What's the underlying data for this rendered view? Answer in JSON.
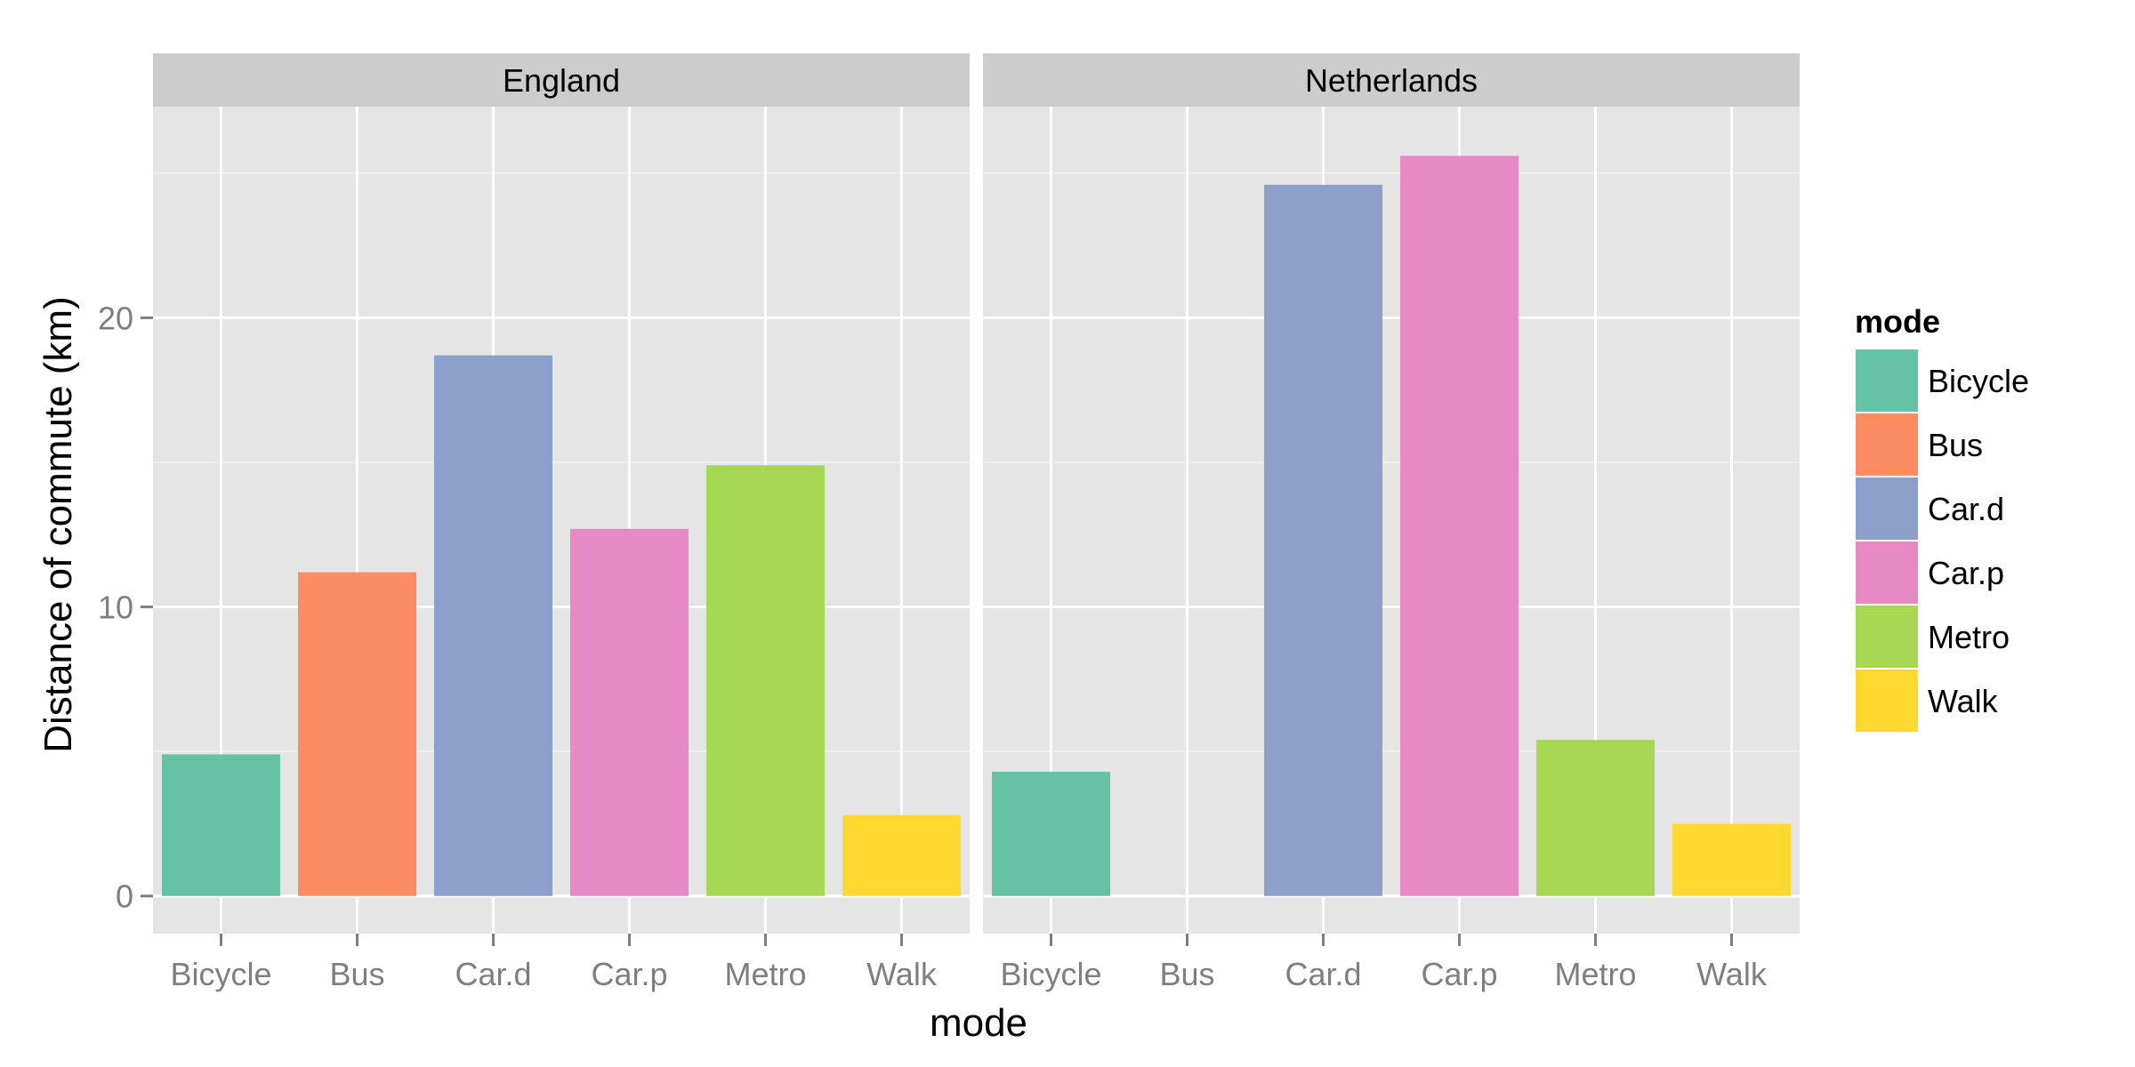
{
  "chart_data": {
    "type": "bar",
    "categories": [
      "Bicycle",
      "Bus",
      "Car.d",
      "Car.p",
      "Metro",
      "Walk"
    ],
    "panels": [
      {
        "name": "England",
        "values": [
          4.9,
          11.2,
          18.7,
          12.7,
          14.9,
          2.8
        ]
      },
      {
        "name": "Netherlands",
        "values": [
          4.3,
          0,
          24.6,
          25.6,
          5.4,
          2.5
        ]
      }
    ],
    "ylim": [
      -1.3,
      27.3
    ],
    "yticks": [
      0,
      10,
      20
    ],
    "xlabel": "mode",
    "ylabel": "Distance of commute (km)",
    "legend": {
      "title": "mode",
      "position": "right",
      "items": [
        "Bicycle",
        "Bus",
        "Car.d",
        "Car.p",
        "Metro",
        "Walk"
      ]
    },
    "colors": [
      "#66c2a5",
      "#fc8d62",
      "#8da0cb",
      "#e78ac3",
      "#a6d854",
      "#ffd92f"
    ],
    "panel_background": "#e5e5e5",
    "strip_background": "#cccccc",
    "grid": true
  }
}
